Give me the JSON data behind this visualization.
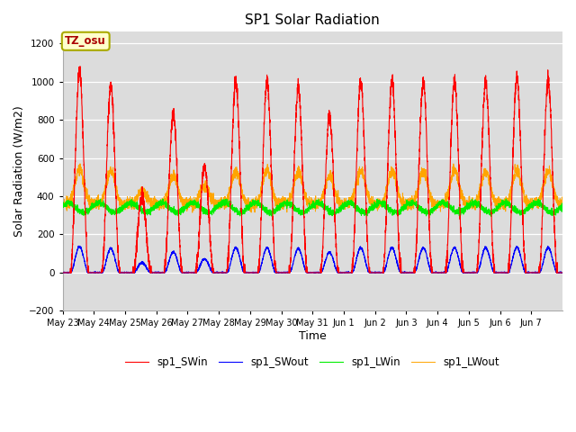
{
  "title": "SP1 Solar Radiation",
  "xlabel": "Time",
  "ylabel": "Solar Radiation (W/m2)",
  "ylim": [
    -200,
    1260
  ],
  "yticks": [
    -200,
    0,
    200,
    400,
    600,
    800,
    1000,
    1200
  ],
  "colors": {
    "SWin": "#ff0000",
    "SWout": "#0000ff",
    "LWin": "#00ee00",
    "LWout": "#ffa500"
  },
  "bg_color": "#dcdcdc",
  "annotation_text": "TZ_osu",
  "annotation_bg": "#ffffcc",
  "annotation_border": "#aaaa00",
  "annotation_text_color": "#aa0000",
  "x_tick_labels": [
    "May 23",
    "May 24",
    "May 25",
    "May 26",
    "May 27",
    "May 28",
    "May 29",
    "May 30",
    "May 31",
    "Jun 1",
    "Jun 2",
    "Jun 3",
    "Jun 4",
    "Jun 5",
    "Jun 6",
    "Jun 7"
  ],
  "num_days": 16,
  "ppd": 288
}
